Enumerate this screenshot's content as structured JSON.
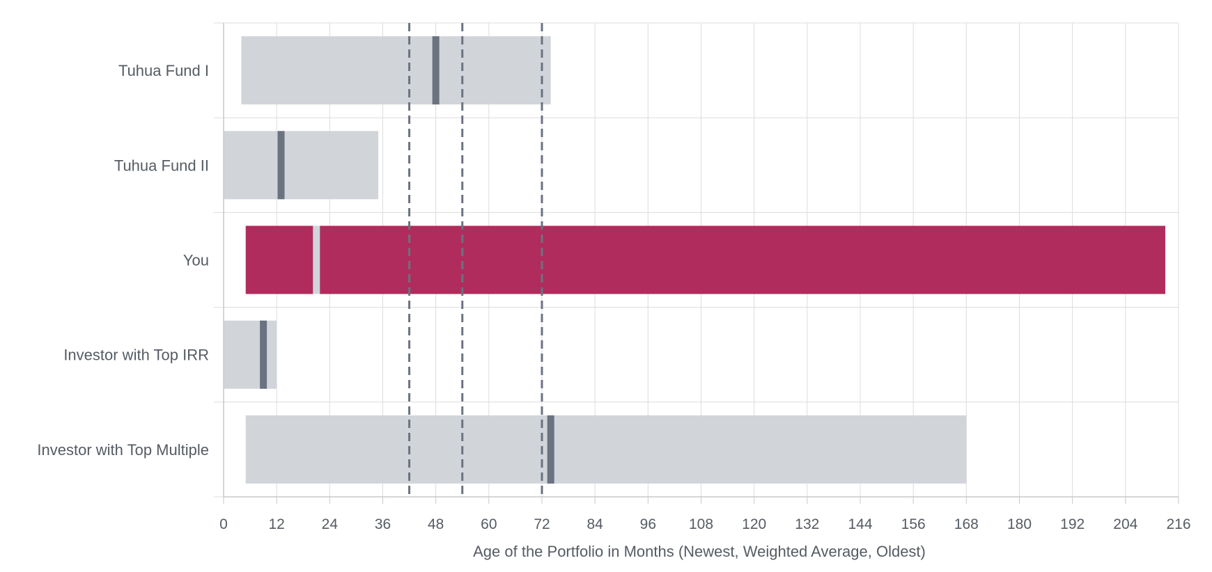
{
  "chart_data": {
    "type": "bar",
    "orientation": "horizontal",
    "title": "",
    "xlabel": "Age of the Portfolio in Months (Newest, Weighted Average, Oldest)",
    "ylabel": "",
    "xlim": [
      0,
      216
    ],
    "xticks": [
      0,
      12,
      24,
      36,
      48,
      60,
      72,
      84,
      96,
      108,
      120,
      132,
      144,
      156,
      168,
      180,
      192,
      204,
      216
    ],
    "grid": true,
    "legend": "none",
    "categories": [
      "Tuhua Fund I",
      "Tuhua Fund II",
      "You",
      "Investor with Top IRR",
      "Investor with Top Multiple"
    ],
    "ranges": [
      {
        "category": "Tuhua Fund I",
        "newest": 4,
        "weighted_average": 48,
        "oldest": 74,
        "highlight": false
      },
      {
        "category": "Tuhua Fund II",
        "newest": 0,
        "weighted_average": 13,
        "oldest": 35,
        "highlight": false
      },
      {
        "category": "You",
        "newest": 5,
        "weighted_average": 21,
        "oldest": 213,
        "highlight": true
      },
      {
        "category": "Investor with Top IRR",
        "newest": 0,
        "weighted_average": 9,
        "oldest": 12,
        "highlight": false
      },
      {
        "category": "Investor with Top Multiple",
        "newest": 5,
        "weighted_average": 74,
        "oldest": 168,
        "highlight": false
      }
    ],
    "reference_lines": [
      42,
      54,
      72
    ],
    "colors": {
      "bar": "#d1d5da",
      "highlight_bar": "#b02c5c",
      "marker": "#6b7280",
      "highlight_marker": "#d1d5da",
      "reference_line": "#6b7280",
      "grid": "#dcdcdc",
      "axis": "#c8c8c8"
    }
  }
}
